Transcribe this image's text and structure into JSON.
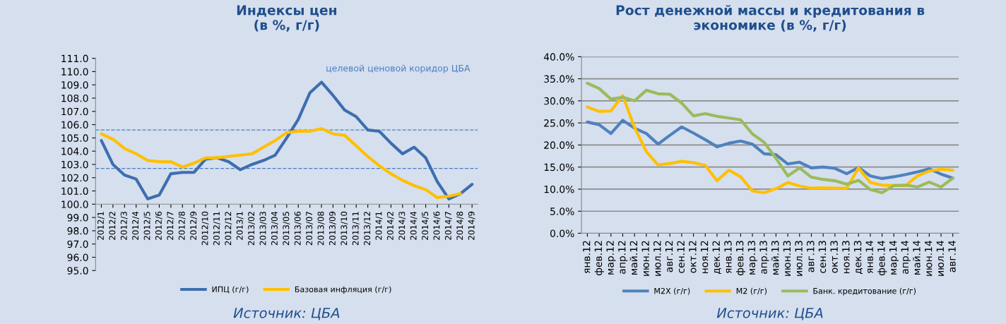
{
  "chart_data": [
    {
      "type": "line",
      "title": "Индексы цен\n(в %, г/г)",
      "categories": [
        "2012/1",
        "2012/2",
        "2012/3",
        "2012/4",
        "2012/5",
        "2012/6",
        "2012/7",
        "2012/8",
        "2012/9",
        "2012/10",
        "2012/11",
        "2012/12",
        "2013/1",
        "2013/02",
        "2013/03",
        "2013/04",
        "2013/05",
        "2013/06",
        "2013/07",
        "2013/08",
        "2013/09",
        "2013/10",
        "2013/11",
        "2013/12",
        "2014/1",
        "2014/2",
        "2014/3",
        "2014/4",
        "2014/5",
        "2014/6",
        "2014/7",
        "2014/8",
        "2014/9"
      ],
      "series": [
        {
          "name": "ИПЦ (г/г)",
          "color": "#3d6eb0",
          "values": [
            104.8,
            103.0,
            102.2,
            101.9,
            100.4,
            100.7,
            102.3,
            102.4,
            102.4,
            103.4,
            103.5,
            103.2,
            102.6,
            103.0,
            103.3,
            103.7,
            105.0,
            106.4,
            108.4,
            109.2,
            108.2,
            107.1,
            106.6,
            105.6,
            105.5,
            104.6,
            103.8,
            104.3,
            103.5,
            101.7,
            100.4,
            100.8,
            101.5
          ]
        },
        {
          "name": "Базовая инфляция (г/г)",
          "color": "#ffc000",
          "values": [
            105.3,
            104.9,
            104.2,
            103.8,
            103.3,
            103.2,
            103.2,
            102.8,
            103.1,
            103.5,
            103.5,
            103.6,
            103.7,
            103.8,
            104.3,
            104.8,
            105.4,
            105.5,
            105.5,
            105.7,
            105.3,
            105.2,
            104.4,
            103.6,
            102.9,
            102.3,
            101.8,
            101.4,
            101.1,
            100.5,
            100.6,
            100.8,
            null
          ]
        }
      ],
      "ylim": [
        95,
        111
      ],
      "yticks": [
        {
          "value": 95,
          "label": "95.0"
        },
        {
          "value": 96,
          "label": "96.0"
        },
        {
          "value": 97,
          "label": "97.0"
        },
        {
          "value": 98,
          "label": "98.0"
        },
        {
          "value": 99,
          "label": "99.0"
        },
        {
          "value": 100,
          "label": "100.0"
        },
        {
          "value": 101,
          "label": "101.0"
        },
        {
          "value": 102,
          "label": "102.0"
        },
        {
          "value": 103,
          "label": "103.0"
        },
        {
          "value": 104,
          "label": "104.0"
        },
        {
          "value": 105,
          "label": "105.0"
        },
        {
          "value": 106,
          "label": "106.0"
        },
        {
          "value": 107,
          "label": "107.0"
        },
        {
          "value": 108,
          "label": "108.0"
        },
        {
          "value": 109,
          "label": "109.0"
        },
        {
          "value": 110,
          "label": "110.0"
        },
        {
          "value": 111,
          "label": "111.0"
        }
      ],
      "ref_lines": [
        {
          "axis": "y",
          "value": 105.6,
          "color": "#4a7ec4",
          "line_style": "dashed"
        },
        {
          "axis": "y",
          "value": 102.7,
          "color": "#4a7ec4",
          "line_style": "dashed"
        }
      ],
      "annotations": [
        "целевой ценовой коридор ЦБА",
        "Источник: ЦБА"
      ],
      "grid": false,
      "legend": "bottom",
      "marker": "none",
      "line_style": "solid"
    },
    {
      "type": "line",
      "title": "Рост денежной массы и кредитования в\nэкономике (в %, г/г)",
      "categories": [
        "янв.12",
        "фев.12",
        "мар.12",
        "апр.12",
        "май.12",
        "июн.12",
        "июл.12",
        "авг.12",
        "сен.12",
        "окт.12",
        "ноя.12",
        "дек.12",
        "янв.13",
        "фев.13",
        "мар.13",
        "апр.13",
        "май.13",
        "июн.13",
        "июл.13",
        "авг.13",
        "сен.13",
        "окт.13",
        "ноя.13",
        "дек.13",
        "янв.14",
        "фев.14",
        "мар.14",
        "апр.14",
        "май.14",
        "июн.14",
        "июл.14",
        "авг.14"
      ],
      "series": [
        {
          "name": "M2X (г/г)",
          "color": "#4f81bd",
          "values": [
            25.2,
            24.6,
            22.6,
            25.6,
            23.8,
            22.6,
            20.2,
            22.2,
            24.1,
            22.7,
            21.2,
            19.6,
            20.4,
            20.9,
            20.2,
            18.0,
            17.8,
            15.7,
            16.1,
            14.8,
            15.0,
            14.7,
            13.5,
            14.9,
            13.0,
            12.4,
            12.8,
            13.3,
            13.9,
            14.6,
            13.4,
            12.5
          ]
        },
        {
          "name": "M2 (г/г)",
          "color": "#ffc000",
          "values": [
            28.6,
            27.6,
            27.7,
            31.2,
            24.0,
            18.5,
            15.5,
            15.8,
            16.3,
            16.0,
            15.4,
            11.9,
            14.3,
            12.8,
            9.6,
            9.2,
            10.1,
            11.5,
            10.7,
            10.2,
            10.3,
            10.2,
            10.2,
            14.8,
            11.5,
            10.9,
            10.8,
            10.8,
            13.0,
            14.1,
            14.5,
            14.3
          ]
        },
        {
          "name": "Банк. кредитование (г/г)",
          "color": "#9bbb59",
          "values": [
            34.0,
            32.8,
            30.4,
            30.8,
            30.0,
            32.4,
            31.6,
            31.5,
            29.5,
            26.6,
            27.1,
            26.5,
            26.1,
            25.7,
            22.5,
            20.6,
            17.0,
            13.0,
            14.8,
            12.7,
            12.2,
            11.9,
            11.1,
            12.0,
            9.9,
            9.2,
            10.8,
            10.9,
            10.5,
            11.6,
            10.5,
            12.5
          ]
        }
      ],
      "ylim": [
        0,
        40
      ],
      "yticks": [
        {
          "value": 0,
          "label": "0.0%"
        },
        {
          "value": 5,
          "label": "5.0%"
        },
        {
          "value": 10,
          "label": "10.0%"
        },
        {
          "value": 15,
          "label": "15.0%"
        },
        {
          "value": 20,
          "label": "20.0%"
        },
        {
          "value": 25,
          "label": "25.0%"
        },
        {
          "value": 30,
          "label": "30.0%"
        },
        {
          "value": 35,
          "label": "35.0%"
        },
        {
          "value": 40,
          "label": "40.0%"
        }
      ],
      "annotations": [
        "Источник: ЦБА"
      ],
      "grid": "y",
      "legend": "bottom",
      "marker": "none",
      "line_style": "solid"
    }
  ]
}
